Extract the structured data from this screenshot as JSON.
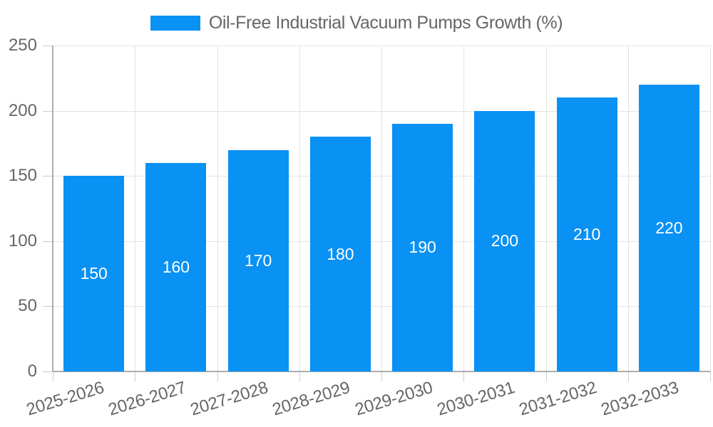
{
  "chart_data": {
    "type": "bar",
    "legend_label": "Oil-Free Industrial Vacuum Pumps Growth (%)",
    "legend_position": "top-center",
    "categories": [
      "2025-2026",
      "2026-2027",
      "2027-2028",
      "2028-2029",
      "2029-2030",
      "2030-2031",
      "2031-2032",
      "2032-2033"
    ],
    "values": [
      150,
      160,
      170,
      180,
      190,
      200,
      210,
      220
    ],
    "bar_value_labels": [
      "150",
      "160",
      "170",
      "180",
      "190",
      "200",
      "210",
      "220"
    ],
    "xlabel": "",
    "ylabel": "",
    "ylim": [
      0,
      250
    ],
    "yticks": [
      0,
      50,
      100,
      150,
      200,
      250
    ],
    "grid": "on",
    "x_label_rotation_deg": -17,
    "colors": {
      "bar": "#0991f4",
      "bar_value_text": "#ffffff",
      "axis_line": "#adadad",
      "grid_line": "#e3e3e3",
      "tick_line": "#cccccc",
      "axis_text": "#666666",
      "legend_text": "#666666",
      "background": "#ffffff"
    }
  }
}
